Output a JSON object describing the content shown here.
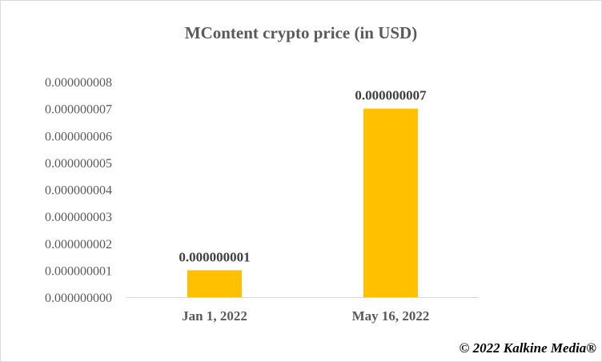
{
  "chart_data": {
    "type": "bar",
    "title": "MContent crypto price (in USD)",
    "categories": [
      "Jan 1, 2022",
      "May 16, 2022"
    ],
    "values": [
      1e-09,
      7e-09
    ],
    "data_labels": [
      "0.000000001",
      "0.000000007"
    ],
    "ylim": [
      0,
      8e-09
    ],
    "yticks": [
      "0.000000000",
      "0.000000001",
      "0.000000002",
      "0.000000003",
      "0.000000004",
      "0.000000005",
      "0.000000006",
      "0.000000007",
      "0.000000008"
    ],
    "grid": false,
    "legend": "none",
    "bar_color": "#FFC000"
  },
  "footer": {
    "copyright": "© 2022 Kalkine Media®"
  }
}
